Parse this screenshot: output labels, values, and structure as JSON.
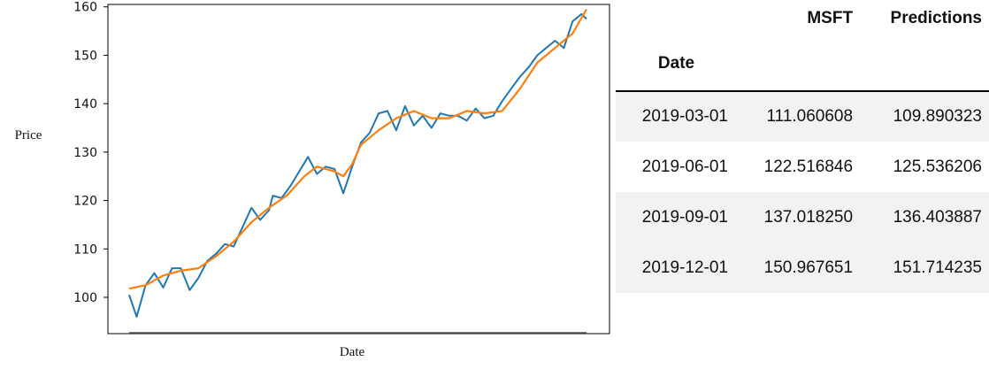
{
  "chart_data": {
    "type": "line",
    "xlabel": "Date",
    "ylabel": "Price",
    "ylim": [
      92.5,
      160.5
    ],
    "yticks": [
      100,
      110,
      120,
      130,
      140,
      150,
      160
    ],
    "grid": false,
    "x_range": [
      "2019-01-02",
      "2019-12-31"
    ],
    "series": [
      {
        "color": "#1f77b4",
        "x": [
          "2019-01-02",
          "2019-01-08",
          "2019-01-15",
          "2019-01-22",
          "2019-01-29",
          "2019-02-05",
          "2019-02-12",
          "2019-02-19",
          "2019-02-26",
          "2019-03-05",
          "2019-03-12",
          "2019-03-19",
          "2019-03-26",
          "2019-04-02",
          "2019-04-09",
          "2019-04-16",
          "2019-04-23",
          "2019-04-26",
          "2019-05-03",
          "2019-05-10",
          "2019-05-17",
          "2019-05-24",
          "2019-05-31",
          "2019-06-07",
          "2019-06-14",
          "2019-06-21",
          "2019-06-28",
          "2019-07-05",
          "2019-07-12",
          "2019-07-19",
          "2019-07-26",
          "2019-08-02",
          "2019-08-09",
          "2019-08-16",
          "2019-08-23",
          "2019-08-30",
          "2019-09-06",
          "2019-09-13",
          "2019-09-20",
          "2019-09-27",
          "2019-10-04",
          "2019-10-11",
          "2019-10-18",
          "2019-10-25",
          "2019-11-01",
          "2019-11-08",
          "2019-11-15",
          "2019-11-22",
          "2019-11-29",
          "2019-12-06",
          "2019-12-13",
          "2019-12-20",
          "2019-12-27",
          "2019-12-31"
        ],
        "y": [
          100.5,
          96.0,
          102.5,
          105.0,
          102.0,
          106.0,
          106.0,
          101.5,
          104.0,
          107.5,
          109.0,
          111.0,
          110.5,
          114.5,
          118.5,
          116.0,
          118.0,
          121.0,
          120.5,
          123.0,
          126.0,
          129.0,
          125.5,
          127.0,
          126.5,
          121.5,
          127.0,
          132.0,
          134.0,
          138.0,
          138.5,
          134.5,
          139.5,
          135.5,
          137.5,
          135.0,
          138.0,
          137.5,
          137.5,
          136.5,
          139.0,
          137.0,
          137.5,
          140.5,
          143.0,
          145.5,
          147.5,
          150.0,
          151.5,
          153.0,
          151.5,
          157.0,
          158.5,
          157.5
        ]
      },
      {
        "name": "Predictions",
        "color": "#ff7f0e",
        "x": [
          "2019-01-02",
          "2019-01-15",
          "2019-01-29",
          "2019-02-12",
          "2019-02-26",
          "2019-03-12",
          "2019-03-26",
          "2019-04-09",
          "2019-04-23",
          "2019-05-07",
          "2019-05-21",
          "2019-05-31",
          "2019-06-07",
          "2019-06-14",
          "2019-06-21",
          "2019-06-28",
          "2019-07-05",
          "2019-07-19",
          "2019-08-02",
          "2019-08-16",
          "2019-08-30",
          "2019-09-13",
          "2019-09-27",
          "2019-10-11",
          "2019-10-25",
          "2019-11-08",
          "2019-11-22",
          "2019-12-06",
          "2019-12-20",
          "2019-12-31"
        ],
        "y": [
          101.8,
          102.5,
          104.5,
          105.5,
          106.0,
          108.5,
          111.5,
          115.5,
          118.5,
          121.0,
          125.0,
          127.0,
          126.5,
          126.0,
          125.0,
          127.5,
          131.5,
          134.5,
          137.0,
          138.5,
          137.0,
          137.0,
          138.5,
          138.0,
          138.5,
          143.0,
          148.5,
          151.5,
          154.5,
          159.5
        ]
      }
    ]
  },
  "table": {
    "index_name": "Date",
    "columns": [
      "MSFT",
      "Predictions"
    ],
    "rows": [
      {
        "date": "2019-03-01",
        "msft": "111.060608",
        "pred": "109.890323"
      },
      {
        "date": "2019-06-01",
        "msft": "122.516846",
        "pred": "125.536206"
      },
      {
        "date": "2019-09-01",
        "msft": "137.018250",
        "pred": "136.403887"
      },
      {
        "date": "2019-12-01",
        "msft": "150.967651",
        "pred": "151.714235"
      }
    ]
  }
}
